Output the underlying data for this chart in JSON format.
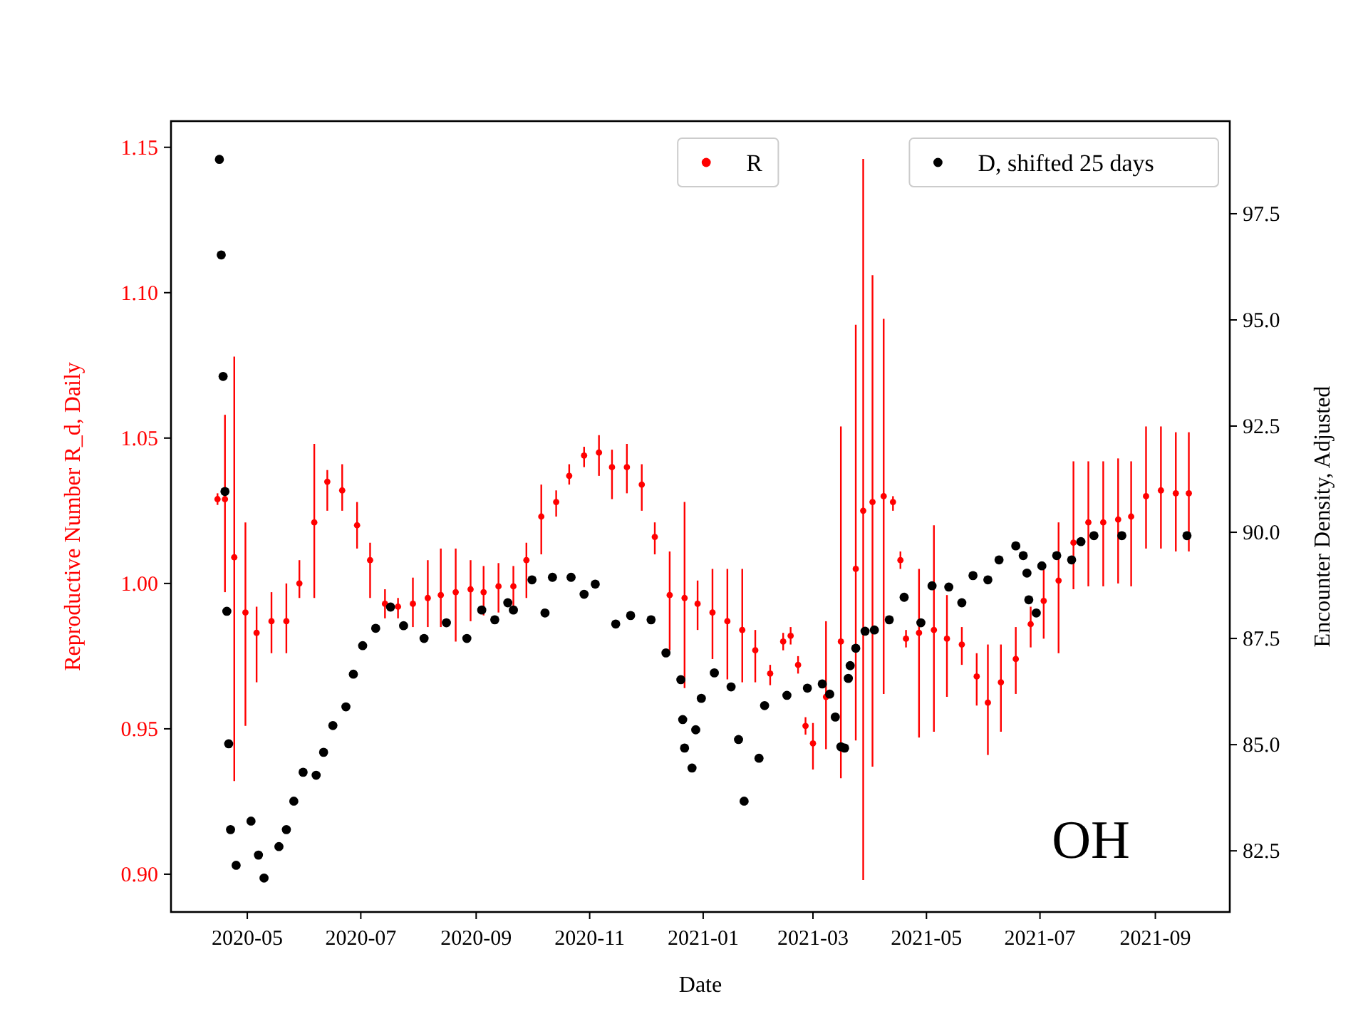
{
  "chart_data": {
    "type": "scatter",
    "xlabel": "Date",
    "ylabel": "Reproductive Number R_d, Daily",
    "y2label": "Encounter Density, Adjusted",
    "annotations": [
      "OH"
    ],
    "legend": "top right",
    "marker": "circle",
    "xlim": [
      "2020-03-21",
      "2021-10-11"
    ],
    "xticks": [
      {
        "value": "2020-05-01",
        "label": "2020-05"
      },
      {
        "value": "2020-07-01",
        "label": "2020-07"
      },
      {
        "value": "2020-09-01",
        "label": "2020-09"
      },
      {
        "value": "2020-11-01",
        "label": "2020-11"
      },
      {
        "value": "2021-01-01",
        "label": "2021-01"
      },
      {
        "value": "2021-03-01",
        "label": "2021-03"
      },
      {
        "value": "2021-05-01",
        "label": "2021-05"
      },
      {
        "value": "2021-07-01",
        "label": "2021-07"
      },
      {
        "value": "2021-09-01",
        "label": "2021-09"
      }
    ],
    "ylim": [
      0.887,
      1.159
    ],
    "yticks": [
      {
        "value": 0.9,
        "label": "0.90"
      },
      0.95,
      {
        "value": 1.0,
        "label": "1.00"
      },
      1.05,
      {
        "value": 1.1,
        "label": "1.10"
      },
      1.15
    ],
    "y2lim": [
      81.06,
      99.68
    ],
    "y2ticks": [
      82.5,
      {
        "value": 85,
        "label": "85.0"
      },
      87.5,
      {
        "value": 90,
        "label": "90.0"
      },
      92.5,
      {
        "value": 95,
        "label": "95.0"
      },
      97.5
    ],
    "series": [
      {
        "name": "R",
        "color": "#ff0000",
        "x": [
          "2020-04-15",
          "2020-04-19",
          "2020-04-24",
          "2020-04-30",
          "2020-05-06",
          "2020-05-14",
          "2020-05-22",
          "2020-05-29",
          "2020-06-06",
          "2020-06-13",
          "2020-06-21",
          "2020-06-29",
          "2020-07-06",
          "2020-07-14",
          "2020-07-21",
          "2020-07-29",
          "2020-08-06",
          "2020-08-13",
          "2020-08-21",
          "2020-08-29",
          "2020-09-05",
          "2020-09-13",
          "2020-09-21",
          "2020-09-28",
          "2020-10-06",
          "2020-10-14",
          "2020-10-21",
          "2020-10-29",
          "2020-11-06",
          "2020-11-13",
          "2020-11-21",
          "2020-11-29",
          "2020-12-06",
          "2020-12-14",
          "2020-12-22",
          "2020-12-29",
          "2021-01-06",
          "2021-01-14",
          "2021-01-22",
          "2021-01-29",
          "2021-02-06",
          "2021-02-13",
          "2021-02-17",
          "2021-02-21",
          "2021-02-25",
          "2021-03-01",
          "2021-03-08",
          "2021-03-16",
          "2021-03-24",
          "2021-03-28",
          "2021-04-02",
          "2021-04-08",
          "2021-04-13",
          "2021-04-17",
          "2021-04-20",
          "2021-04-27",
          "2021-05-05",
          "2021-05-12",
          "2021-05-20",
          "2021-05-28",
          "2021-06-03",
          "2021-06-10",
          "2021-06-18",
          "2021-06-26",
          "2021-07-03",
          "2021-07-11",
          "2021-07-19",
          "2021-07-27",
          "2021-08-04",
          "2021-08-12",
          "2021-08-19",
          "2021-08-27",
          "2021-09-04",
          "2021-09-12",
          "2021-09-19"
        ],
        "values": [
          1.029,
          1.029,
          1.009,
          0.99,
          0.983,
          0.987,
          0.987,
          1.0,
          1.021,
          1.035,
          1.032,
          1.02,
          1.008,
          0.993,
          0.992,
          0.993,
          0.995,
          0.996,
          0.997,
          0.998,
          0.997,
          0.999,
          0.999,
          1.008,
          1.023,
          1.028,
          1.037,
          1.044,
          1.045,
          1.04,
          1.04,
          1.034,
          1.016,
          0.996,
          0.995,
          0.993,
          0.99,
          0.987,
          0.984,
          0.977,
          0.969,
          0.98,
          0.982,
          0.972,
          0.951,
          0.945,
          0.961,
          0.98,
          1.005,
          1.025,
          1.028,
          1.03,
          1.028,
          1.008,
          0.981,
          0.983,
          0.984,
          0.981,
          0.979,
          0.968,
          0.959,
          0.966,
          0.974,
          0.986,
          0.994,
          1.001,
          1.014,
          1.021,
          1.021,
          1.022,
          1.023,
          1.03,
          1.032,
          1.031,
          1.031
        ],
        "errors": [
          [
            1.027,
            1.031
          ],
          [
            0.997,
            1.058
          ],
          [
            0.932,
            1.078
          ],
          [
            0.951,
            1.021
          ],
          [
            0.966,
            0.992
          ],
          [
            0.976,
            0.997
          ],
          [
            0.976,
            1.0
          ],
          [
            0.995,
            1.008
          ],
          [
            0.995,
            1.048
          ],
          [
            1.025,
            1.039
          ],
          [
            1.025,
            1.041
          ],
          [
            1.012,
            1.028
          ],
          [
            0.995,
            1.014
          ],
          [
            0.988,
            0.998
          ],
          [
            0.988,
            0.995
          ],
          [
            0.985,
            1.002
          ],
          [
            0.985,
            1.008
          ],
          [
            0.985,
            1.012
          ],
          [
            0.98,
            1.012
          ],
          [
            0.987,
            1.008
          ],
          [
            0.989,
            1.006
          ],
          [
            0.99,
            1.007
          ],
          [
            0.991,
            1.006
          ],
          [
            0.995,
            1.014
          ],
          [
            1.01,
            1.034
          ],
          [
            1.023,
            1.032
          ],
          [
            1.034,
            1.041
          ],
          [
            1.04,
            1.047
          ],
          [
            1.037,
            1.051
          ],
          [
            1.029,
            1.046
          ],
          [
            1.031,
            1.048
          ],
          [
            1.025,
            1.041
          ],
          [
            1.01,
            1.021
          ],
          [
            0.977,
            1.011
          ],
          [
            0.964,
            1.028
          ],
          [
            0.984,
            1.001
          ],
          [
            0.974,
            1.005
          ],
          [
            0.967,
            1.005
          ],
          [
            0.966,
            1.005
          ],
          [
            0.966,
            0.984
          ],
          [
            0.965,
            0.972
          ],
          [
            0.977,
            0.983
          ],
          [
            0.979,
            0.985
          ],
          [
            0.969,
            0.975
          ],
          [
            0.948,
            0.954
          ],
          [
            0.936,
            0.952
          ],
          [
            0.943,
            0.987
          ],
          [
            0.933,
            1.054
          ],
          [
            0.946,
            1.089
          ],
          [
            0.898,
            1.146
          ],
          [
            0.937,
            1.106
          ],
          [
            0.962,
            1.091
          ],
          [
            1.025,
            1.03
          ],
          [
            1.005,
            1.011
          ],
          [
            0.978,
            0.984
          ],
          [
            0.947,
            1.005
          ],
          [
            0.949,
            1.02
          ],
          [
            0.961,
            0.996
          ],
          [
            0.972,
            0.985
          ],
          [
            0.958,
            0.976
          ],
          [
            0.941,
            0.979
          ],
          [
            0.949,
            0.979
          ],
          [
            0.962,
            0.985
          ],
          [
            0.978,
            0.992
          ],
          [
            0.981,
            1.005
          ],
          [
            0.976,
            1.021
          ],
          [
            0.998,
            1.042
          ],
          [
            0.999,
            1.042
          ],
          [
            0.999,
            1.042
          ],
          [
            1.0,
            1.043
          ],
          [
            0.999,
            1.042
          ],
          [
            1.012,
            1.054
          ],
          [
            1.012,
            1.054
          ],
          [
            1.011,
            1.052
          ],
          [
            1.011,
            1.052
          ]
        ]
      },
      {
        "name": "D, shifted 25 days",
        "color": "#000000",
        "axis": "y2",
        "x": [
          "2020-04-16",
          "2020-04-17",
          "2020-04-18",
          "2020-04-19",
          "2020-04-20",
          "2020-04-21",
          "2020-04-22",
          "2020-04-25",
          "2020-05-03",
          "2020-05-07",
          "2020-05-10",
          "2020-05-18",
          "2020-05-22",
          "2020-05-26",
          "2020-05-31",
          "2020-06-07",
          "2020-06-11",
          "2020-06-16",
          "2020-06-23",
          "2020-06-27",
          "2020-07-02",
          "2020-07-09",
          "2020-07-17",
          "2020-07-24",
          "2020-08-04",
          "2020-08-16",
          "2020-08-27",
          "2020-09-04",
          "2020-09-11",
          "2020-09-18",
          "2020-09-21",
          "2020-10-01",
          "2020-10-08",
          "2020-10-12",
          "2020-10-22",
          "2020-10-29",
          "2020-11-04",
          "2020-11-15",
          "2020-11-23",
          "2020-12-04",
          "2020-12-12",
          "2020-12-20",
          "2020-12-21",
          "2020-12-22",
          "2020-12-26",
          "2020-12-28",
          "2020-12-31",
          "2021-01-07",
          "2021-01-16",
          "2021-01-20",
          "2021-01-23",
          "2021-01-31",
          "2021-02-03",
          "2021-02-15",
          "2021-02-26",
          "2021-03-06",
          "2021-03-10",
          "2021-03-13",
          "2021-03-16",
          "2021-03-18",
          "2021-03-20",
          "2021-03-21",
          "2021-03-24",
          "2021-03-29",
          "2021-04-03",
          "2021-04-11",
          "2021-04-19",
          "2021-04-28",
          "2021-05-04",
          "2021-05-13",
          "2021-05-20",
          "2021-05-26",
          "2021-06-03",
          "2021-06-09",
          "2021-06-18",
          "2021-06-22",
          "2021-06-24",
          "2021-06-25",
          "2021-06-29",
          "2021-07-02",
          "2021-07-10",
          "2021-07-18",
          "2021-07-23",
          "2021-07-30",
          "2021-08-14",
          "2021-09-18"
        ],
        "values": [
          98.78,
          96.53,
          93.67,
          90.96,
          88.14,
          85.02,
          83.0,
          82.16,
          83.2,
          82.4,
          81.86,
          82.6,
          83.0,
          83.67,
          84.35,
          84.28,
          84.82,
          85.45,
          85.89,
          86.66,
          87.33,
          87.74,
          88.24,
          87.8,
          87.5,
          87.87,
          87.5,
          88.17,
          87.94,
          88.34,
          88.17,
          88.88,
          88.1,
          88.94,
          88.94,
          88.54,
          88.78,
          87.84,
          88.04,
          87.94,
          87.16,
          86.53,
          85.59,
          84.92,
          84.45,
          85.35,
          86.09,
          86.69,
          86.36,
          85.12,
          83.67,
          84.68,
          85.92,
          86.16,
          86.33,
          86.43,
          86.19,
          85.65,
          84.95,
          84.92,
          86.56,
          86.86,
          87.27,
          87.67,
          87.7,
          87.94,
          88.47,
          87.87,
          88.74,
          88.71,
          88.34,
          88.98,
          88.88,
          89.35,
          89.68,
          89.45,
          89.04,
          88.41,
          88.1,
          89.21,
          89.45,
          89.35,
          89.78,
          89.92,
          89.92,
          89.92
        ]
      }
    ]
  }
}
